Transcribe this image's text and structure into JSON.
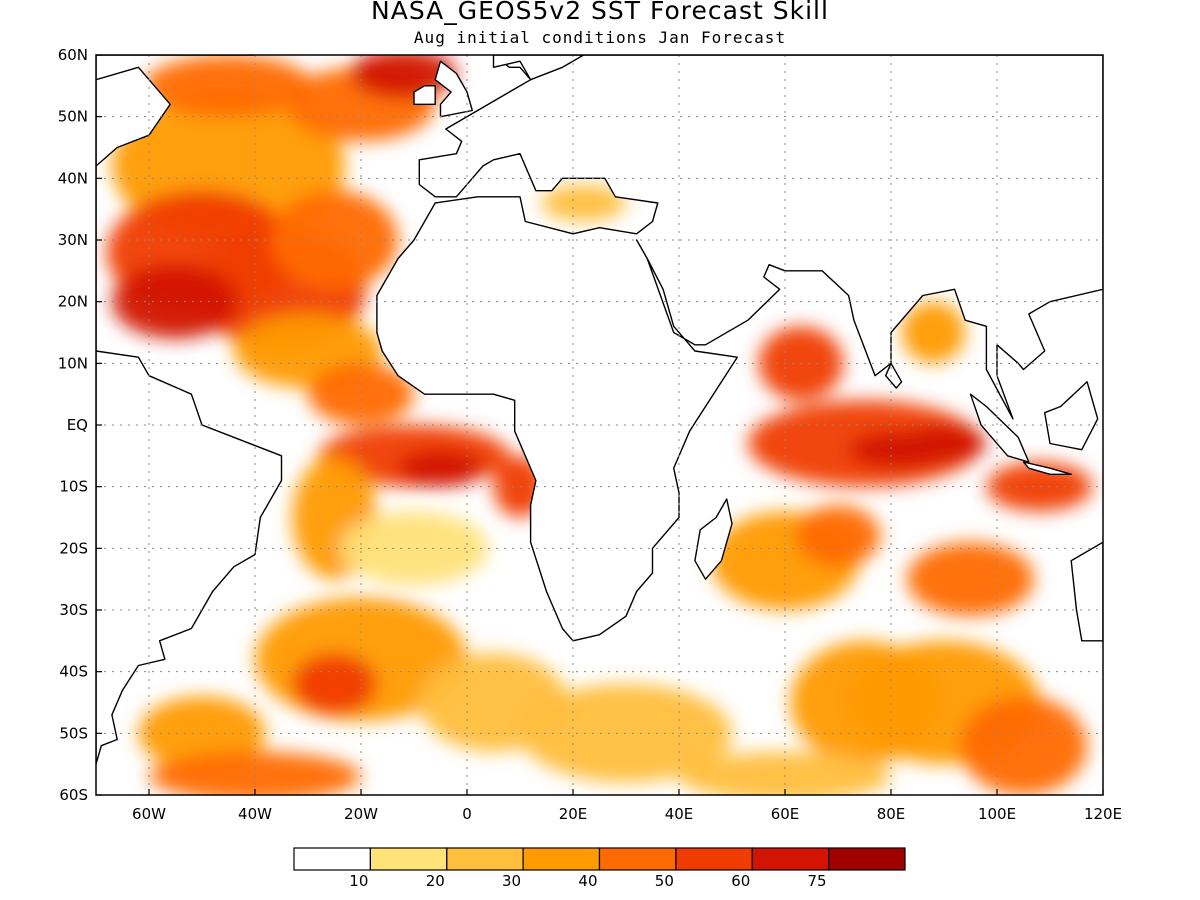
{
  "title": "NASA_GEOS5v2 SST Forecast Skill",
  "subtitle": "Aug initial conditions  Jan Forecast",
  "map": {
    "lon_range": [
      -70,
      120
    ],
    "lat_range": [
      -60,
      60
    ],
    "lat_ticks": [
      {
        "value": 60,
        "label": "60N"
      },
      {
        "value": 50,
        "label": "50N"
      },
      {
        "value": 40,
        "label": "40N"
      },
      {
        "value": 30,
        "label": "30N"
      },
      {
        "value": 20,
        "label": "20N"
      },
      {
        "value": 10,
        "label": "10N"
      },
      {
        "value": 0,
        "label": "EQ"
      },
      {
        "value": -10,
        "label": "10S"
      },
      {
        "value": -20,
        "label": "20S"
      },
      {
        "value": -30,
        "label": "30S"
      },
      {
        "value": -40,
        "label": "40S"
      },
      {
        "value": -50,
        "label": "50S"
      },
      {
        "value": -60,
        "label": "60S"
      }
    ],
    "lon_ticks": [
      {
        "value": -60,
        "label": "60W"
      },
      {
        "value": -40,
        "label": "40W"
      },
      {
        "value": -20,
        "label": "20W"
      },
      {
        "value": 0,
        "label": "0"
      },
      {
        "value": 20,
        "label": "20E"
      },
      {
        "value": 40,
        "label": "40E"
      },
      {
        "value": 60,
        "label": "60E"
      },
      {
        "value": 80,
        "label": "80E"
      },
      {
        "value": 100,
        "label": "100E"
      },
      {
        "value": 120,
        "label": "120E"
      }
    ],
    "grid": "dotted"
  },
  "colorbar": {
    "colors": [
      "#ffffff",
      "#ffe278",
      "#ffbe3c",
      "#ff9a00",
      "#ff6a00",
      "#f03c00",
      "#d21400",
      "#a00000"
    ],
    "labels": [
      "10",
      "20",
      "30",
      "40",
      "50",
      "60",
      "75"
    ]
  }
}
